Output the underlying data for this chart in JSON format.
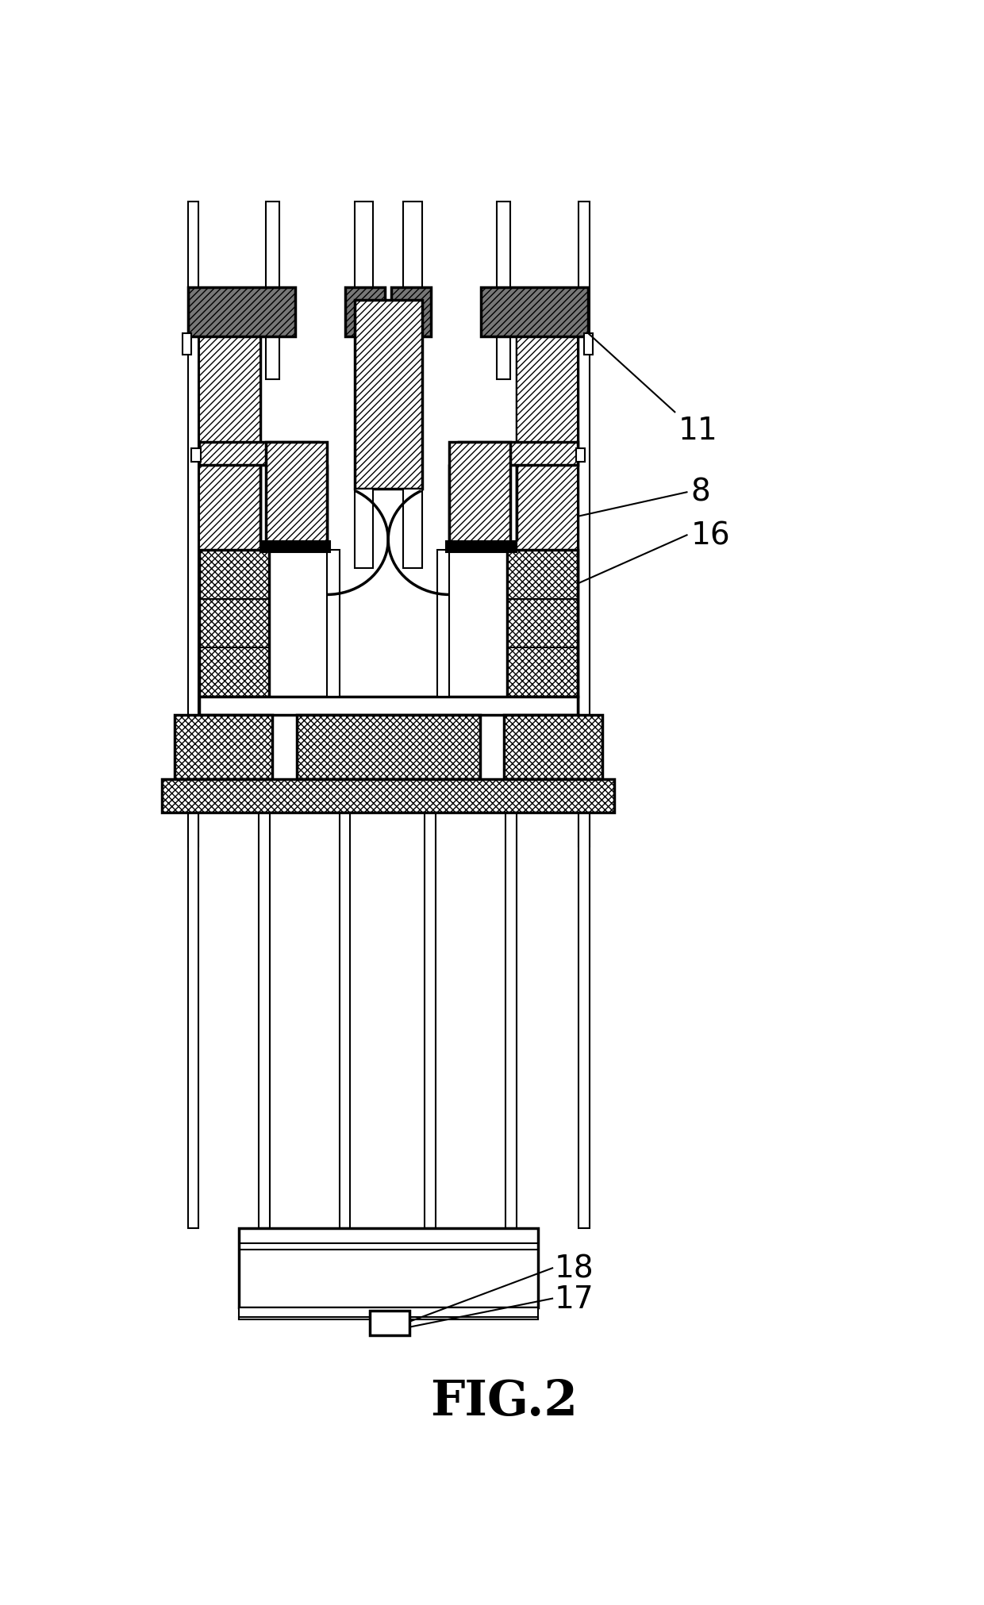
{
  "fig_label": "FIG.2",
  "label_11": "11",
  "label_8": "8",
  "label_16": "16",
  "label_17": "17",
  "label_18": "18",
  "bg_color": "#ffffff",
  "lw": 1.5,
  "lw2": 2.5,
  "gray_hatch_fill": "#aaaaaa",
  "white": "#ffffff",
  "black": "#000000"
}
